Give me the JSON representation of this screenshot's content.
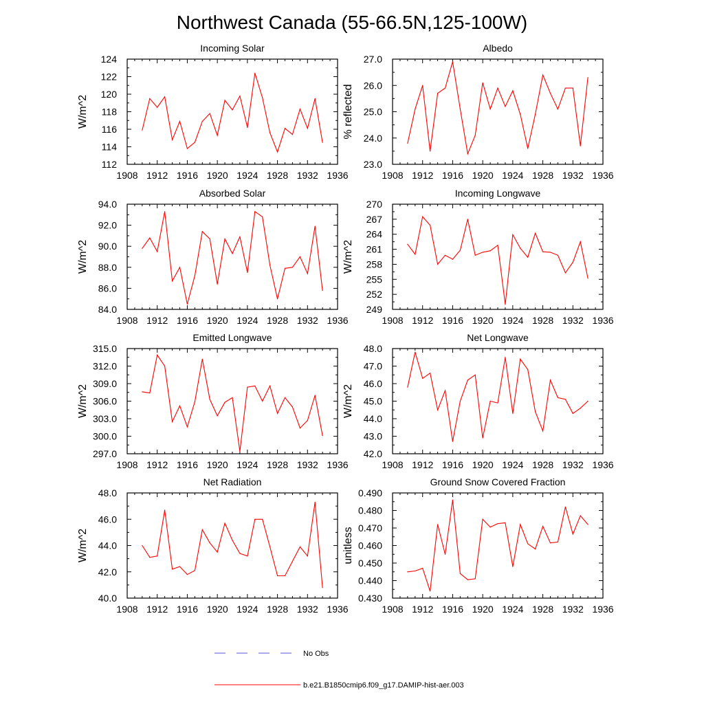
{
  "title": "Northwest Canada (55-66.5N,125-100W)",
  "legend": {
    "placement": "bottom-center",
    "items": [
      {
        "label": "No Obs",
        "color": "#5555cc",
        "style": "dashed"
      },
      {
        "label": "b.e21.B1850cmip6.f09_g17.DAMIP-hist-aer.003",
        "color": "#ff0000",
        "style": "solid"
      }
    ]
  },
  "chart_data": [
    {
      "type": "line",
      "title": "Incoming Solar",
      "ylabel": "W/m^2",
      "xlim": [
        1908,
        1936
      ],
      "ylim": [
        112,
        124
      ],
      "x_ticks": [
        "1908",
        "1912",
        "1916",
        "1920",
        "1924",
        "1928",
        "1932",
        "1936"
      ],
      "y_ticks": [
        "112",
        "114",
        "116",
        "118",
        "120",
        "122",
        "124"
      ],
      "grid": false,
      "series": [
        {
          "color": "#ff0000",
          "x": [
            1910,
            1911,
            1912,
            1913,
            1914,
            1915,
            1916,
            1917,
            1918,
            1919,
            1920,
            1921,
            1922,
            1923,
            1924,
            1925,
            1926,
            1927,
            1928,
            1929,
            1930,
            1931,
            1932,
            1933,
            1934
          ],
          "values": [
            115.9,
            119.5,
            118.5,
            119.7,
            114.8,
            116.9,
            113.8,
            114.5,
            116.9,
            117.8,
            115.3,
            119.3,
            118.2,
            119.8,
            116.2,
            122.4,
            119.6,
            115.6,
            113.4,
            116.1,
            115.4,
            118.3,
            116.1,
            119.5,
            114.5
          ]
        }
      ]
    },
    {
      "type": "line",
      "title": "Albedo",
      "ylabel": "% reflected",
      "xlim": [
        1908,
        1936
      ],
      "ylim": [
        23.0,
        27.0
      ],
      "x_ticks": [
        "1908",
        "1912",
        "1916",
        "1920",
        "1924",
        "1928",
        "1932",
        "1936"
      ],
      "y_ticks": [
        "23.0",
        "24.0",
        "25.0",
        "26.0",
        "27.0"
      ],
      "grid": false,
      "series": [
        {
          "color": "#ff0000",
          "x": [
            1910,
            1911,
            1912,
            1913,
            1914,
            1915,
            1916,
            1917,
            1918,
            1919,
            1920,
            1921,
            1922,
            1923,
            1924,
            1925,
            1926,
            1927,
            1928,
            1929,
            1930,
            1931,
            1932,
            1933,
            1934
          ],
          "values": [
            23.8,
            25.1,
            26.0,
            23.5,
            25.7,
            25.9,
            26.9,
            25.1,
            23.4,
            24.1,
            26.1,
            25.1,
            25.9,
            25.2,
            25.8,
            24.9,
            23.6,
            24.9,
            26.4,
            25.7,
            25.1,
            25.9,
            25.9,
            23.7,
            26.3
          ]
        }
      ]
    },
    {
      "type": "line",
      "title": "Absorbed Solar",
      "ylabel": "W/m^2",
      "xlim": [
        1908,
        1936
      ],
      "ylim": [
        84.0,
        94.0
      ],
      "x_ticks": [
        "1908",
        "1912",
        "1916",
        "1920",
        "1924",
        "1928",
        "1932",
        "1936"
      ],
      "y_ticks": [
        "84.0",
        "86.0",
        "88.0",
        "90.0",
        "92.0",
        "94.0"
      ],
      "grid": false,
      "series": [
        {
          "color": "#ff0000",
          "x": [
            1910,
            1911,
            1912,
            1913,
            1914,
            1915,
            1916,
            1917,
            1918,
            1919,
            1920,
            1921,
            1922,
            1923,
            1924,
            1925,
            1926,
            1927,
            1928,
            1929,
            1930,
            1931,
            1932,
            1933,
            1934
          ],
          "values": [
            89.8,
            90.8,
            89.5,
            93.3,
            86.7,
            88.0,
            84.5,
            87.2,
            91.4,
            90.7,
            86.4,
            90.7,
            89.3,
            90.9,
            87.5,
            93.3,
            92.8,
            88.2,
            85.0,
            87.9,
            88.0,
            89.0,
            87.4,
            91.9,
            85.8
          ]
        }
      ]
    },
    {
      "type": "line",
      "title": "Incoming Longwave",
      "ylabel": "W/m^2",
      "xlim": [
        1908,
        1936
      ],
      "ylim": [
        249,
        270
      ],
      "x_ticks": [
        "1908",
        "1912",
        "1916",
        "1920",
        "1924",
        "1928",
        "1932",
        "1936"
      ],
      "y_ticks": [
        "249",
        "252",
        "255",
        "258",
        "261",
        "264",
        "267",
        "270"
      ],
      "grid": false,
      "series": [
        {
          "color": "#ff0000",
          "x": [
            1910,
            1911,
            1912,
            1913,
            1914,
            1915,
            1916,
            1917,
            1918,
            1919,
            1920,
            1921,
            1922,
            1923,
            1924,
            1925,
            1926,
            1927,
            1928,
            1929,
            1930,
            1931,
            1932,
            1933,
            1934
          ],
          "values": [
            262.0,
            260.0,
            267.5,
            265.8,
            258.0,
            259.8,
            259.0,
            260.8,
            267.0,
            259.8,
            260.4,
            260.7,
            261.8,
            250.0,
            263.9,
            261.2,
            259.4,
            264.2,
            260.5,
            260.4,
            259.8,
            256.3,
            258.4,
            262.5,
            255.2
          ]
        }
      ]
    },
    {
      "type": "line",
      "title": "Emitted Longwave",
      "ylabel": "W/m^2",
      "xlim": [
        1908,
        1936
      ],
      "ylim": [
        297.0,
        315.0
      ],
      "x_ticks": [
        "1908",
        "1912",
        "1916",
        "1920",
        "1924",
        "1928",
        "1932",
        "1936"
      ],
      "y_ticks": [
        "297.0",
        "300.0",
        "303.0",
        "306.0",
        "309.0",
        "312.0",
        "315.0"
      ],
      "grid": false,
      "series": [
        {
          "color": "#ff0000",
          "x": [
            1910,
            1911,
            1912,
            1913,
            1914,
            1915,
            1916,
            1917,
            1918,
            1919,
            1920,
            1921,
            1922,
            1923,
            1924,
            1925,
            1926,
            1927,
            1928,
            1929,
            1930,
            1931,
            1932,
            1933,
            1934
          ],
          "values": [
            307.6,
            307.4,
            313.9,
            312.0,
            302.5,
            305.2,
            301.6,
            305.9,
            313.2,
            306.3,
            303.5,
            305.8,
            306.6,
            297.4,
            308.4,
            308.6,
            306.0,
            308.6,
            303.9,
            306.6,
            305.0,
            301.4,
            302.7,
            307.0,
            300.1
          ]
        }
      ]
    },
    {
      "type": "line",
      "title": "Net Longwave",
      "ylabel": "W/m^2",
      "xlim": [
        1908,
        1936
      ],
      "ylim": [
        42.0,
        48.0
      ],
      "x_ticks": [
        "1908",
        "1912",
        "1916",
        "1920",
        "1924",
        "1928",
        "1932",
        "1936"
      ],
      "y_ticks": [
        "42.0",
        "43.0",
        "44.0",
        "45.0",
        "46.0",
        "47.0",
        "48.0"
      ],
      "grid": false,
      "series": [
        {
          "color": "#ff0000",
          "x": [
            1910,
            1911,
            1912,
            1913,
            1914,
            1915,
            1916,
            1917,
            1918,
            1919,
            1920,
            1921,
            1922,
            1923,
            1924,
            1925,
            1926,
            1927,
            1928,
            1929,
            1930,
            1931,
            1932,
            1933,
            1934
          ],
          "values": [
            45.8,
            47.8,
            46.3,
            46.6,
            44.5,
            45.6,
            42.7,
            45.0,
            46.2,
            46.5,
            42.9,
            45.0,
            44.9,
            47.5,
            44.3,
            47.4,
            46.8,
            44.4,
            43.3,
            46.2,
            45.2,
            45.1,
            44.3,
            44.6,
            45.0
          ]
        }
      ]
    },
    {
      "type": "line",
      "title": "Net Radiation",
      "ylabel": "W/m^2",
      "xlim": [
        1908,
        1936
      ],
      "ylim": [
        40.0,
        48.0
      ],
      "x_ticks": [
        "1908",
        "1912",
        "1916",
        "1920",
        "1924",
        "1928",
        "1932",
        "1936"
      ],
      "y_ticks": [
        "40.0",
        "42.0",
        "44.0",
        "46.0",
        "48.0"
      ],
      "grid": false,
      "series": [
        {
          "color": "#ff0000",
          "x": [
            1910,
            1911,
            1912,
            1913,
            1914,
            1915,
            1916,
            1917,
            1918,
            1919,
            1920,
            1921,
            1922,
            1923,
            1924,
            1925,
            1926,
            1927,
            1928,
            1929,
            1930,
            1931,
            1932,
            1933,
            1934
          ],
          "values": [
            44.0,
            43.1,
            43.2,
            46.7,
            42.2,
            42.4,
            41.8,
            42.1,
            45.2,
            44.2,
            43.5,
            45.7,
            44.4,
            43.4,
            43.2,
            46.0,
            46.0,
            43.9,
            41.7,
            41.7,
            42.8,
            43.9,
            43.2,
            47.3,
            40.8
          ]
        }
      ]
    },
    {
      "type": "line",
      "title": "Ground Snow Covered Fraction",
      "ylabel": "unitless",
      "xlim": [
        1908,
        1936
      ],
      "ylim": [
        0.43,
        0.49
      ],
      "x_ticks": [
        "1908",
        "1912",
        "1916",
        "1920",
        "1924",
        "1928",
        "1932",
        "1936"
      ],
      "y_ticks": [
        "0.430",
        "0.440",
        "0.450",
        "0.460",
        "0.470",
        "0.480",
        "0.490"
      ],
      "grid": false,
      "series": [
        {
          "color": "#ff0000",
          "x": [
            1910,
            1911,
            1912,
            1913,
            1914,
            1915,
            1916,
            1917,
            1918,
            1919,
            1920,
            1921,
            1922,
            1923,
            1924,
            1925,
            1926,
            1927,
            1928,
            1929,
            1930,
            1931,
            1932,
            1933,
            1934
          ],
          "values": [
            0.445,
            0.4455,
            0.447,
            0.434,
            0.472,
            0.455,
            0.486,
            0.444,
            0.4405,
            0.441,
            0.475,
            0.4705,
            0.4725,
            0.473,
            0.448,
            0.472,
            0.461,
            0.458,
            0.471,
            0.4615,
            0.462,
            0.482,
            0.4665,
            0.477,
            0.472
          ]
        }
      ]
    }
  ]
}
